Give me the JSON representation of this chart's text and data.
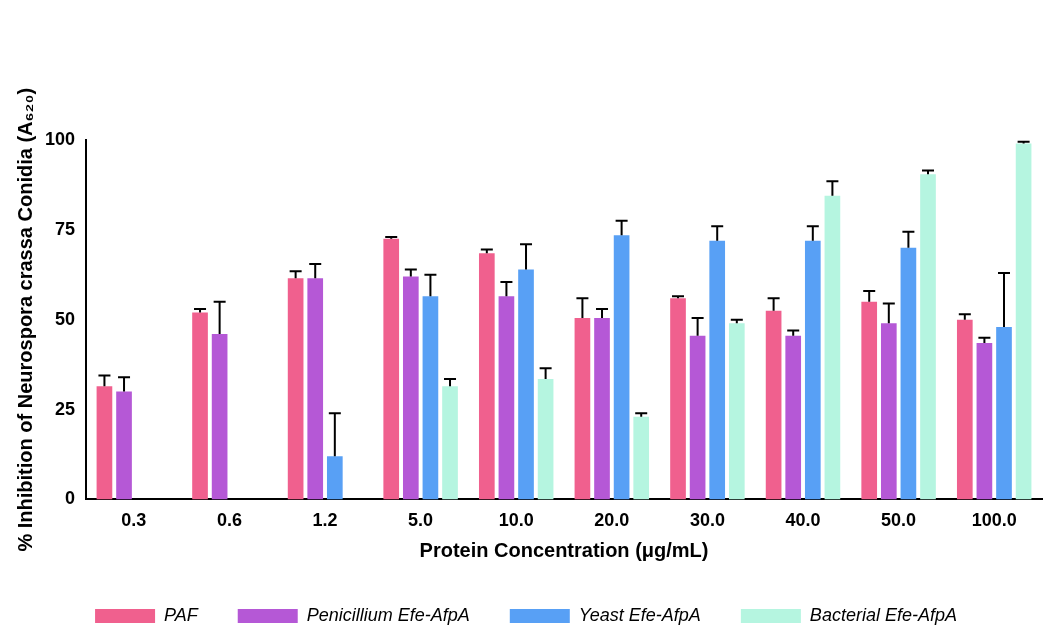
{
  "chart_data": {
    "type": "bar",
    "xlabel": "Protein Concentration (μg/mL)",
    "ylabel": "% Inhibition of Neurospora crassa Conidia (A₆₂₀)",
    "categories": [
      "0.3",
      "0.6",
      "1.2",
      "5.0",
      "10.0",
      "20.0",
      "30.0",
      "40.0",
      "50.0",
      "100.0"
    ],
    "series": [
      {
        "name": "PAF",
        "color": "#f0608e",
        "values": [
          31.5,
          52,
          61.5,
          72.5,
          68.5,
          50.5,
          56,
          52.5,
          55,
          50
        ],
        "errors": [
          [
            31.5,
            34.5
          ],
          [
            52,
            53
          ],
          [
            61.5,
            63.5
          ],
          [
            72.5,
            73
          ],
          [
            68.5,
            69.5
          ],
          [
            50.5,
            56
          ],
          [
            56,
            56.5
          ],
          [
            52.5,
            56
          ],
          [
            55,
            58
          ],
          [
            50,
            51.5
          ]
        ]
      },
      {
        "name": "Penicillium Efe-AfpA",
        "color": "#b558d6",
        "values": [
          30,
          46,
          61.5,
          62,
          56.5,
          50.5,
          45.5,
          45.5,
          49,
          43.5
        ],
        "errors": [
          [
            30,
            34
          ],
          [
            46,
            55
          ],
          [
            61.5,
            65.5
          ],
          [
            62,
            64
          ],
          [
            56.5,
            60.5
          ],
          [
            50.5,
            53
          ],
          [
            45.5,
            50.5
          ],
          [
            45.5,
            47
          ],
          [
            49,
            54.5
          ],
          [
            43.5,
            45
          ]
        ]
      },
      {
        "name": "Yeast Efe-AfpA",
        "color": "#58a0f5",
        "values": [
          null,
          null,
          12,
          56.5,
          64,
          73.5,
          72,
          72,
          70,
          48
        ],
        "errors": [
          null,
          null,
          [
            12,
            24
          ],
          [
            56.5,
            62.5
          ],
          [
            64,
            71
          ],
          [
            73.5,
            77.5
          ],
          [
            72,
            76
          ],
          [
            72,
            76
          ],
          [
            70,
            74.5
          ],
          [
            48,
            63
          ]
        ]
      },
      {
        "name": "Bacterial Efe-AfpA",
        "color": "#b5f5e0",
        "values": [
          null,
          null,
          null,
          31.5,
          33.5,
          23,
          49,
          84.5,
          90.5,
          99
        ],
        "errors": [
          null,
          null,
          null,
          [
            31.5,
            33.5
          ],
          [
            33.5,
            36.5
          ],
          [
            23,
            24
          ],
          [
            49,
            50
          ],
          [
            84.5,
            88.5
          ],
          [
            90.5,
            91.5
          ],
          [
            99,
            99.5
          ]
        ]
      }
    ],
    "ylim": [
      0,
      100
    ],
    "yticks": [
      0,
      25,
      50,
      75,
      100
    ],
    "grid": false,
    "legend": "bottom"
  }
}
